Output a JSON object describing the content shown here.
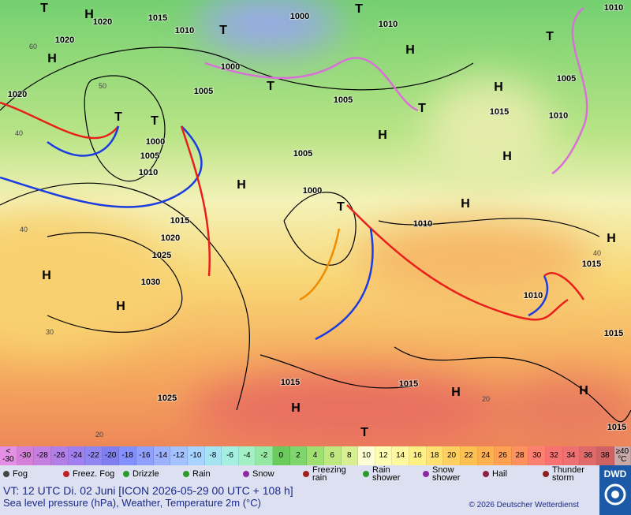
{
  "map": {
    "isobar_labels": [
      "1015",
      "1020",
      "1020",
      "1010",
      "1000",
      "1010",
      "1010",
      "1000",
      "1005",
      "1005",
      "1005",
      "1015",
      "1010",
      "1000",
      "1005",
      "1010",
      "1005",
      "1000",
      "1015",
      "1020",
      "1025",
      "1030",
      "1010",
      "1015",
      "1010",
      "1015",
      "1015",
      "1015",
      "1025",
      "1015",
      "1020"
    ],
    "pressure_centers": [
      "H",
      "H",
      "H",
      "H",
      "H",
      "H",
      "H",
      "H",
      "H",
      "H",
      "H",
      "H",
      "H",
      "H",
      "T",
      "T",
      "T",
      "T",
      "T",
      "T",
      "T",
      "T",
      "T",
      "T"
    ],
    "temperature_labels": [
      "60",
      "50",
      "40",
      "40",
      "30",
      "20",
      "40",
      "20"
    ]
  },
  "color_scale": [
    {
      "label": "< -30",
      "color": "#e38fe3"
    },
    {
      "label": "-30",
      "color": "#d47fd8"
    },
    {
      "label": "-28",
      "color": "#c47fe0"
    },
    {
      "label": "-26",
      "color": "#b27fe8"
    },
    {
      "label": "-24",
      "color": "#a07ff0"
    },
    {
      "label": "-22",
      "color": "#8f86f2"
    },
    {
      "label": "-20",
      "color": "#7f7ff0"
    },
    {
      "label": "-18",
      "color": "#8390ff"
    },
    {
      "label": "-16",
      "color": "#90a0ff"
    },
    {
      "label": "-14",
      "color": "#9db2ff"
    },
    {
      "label": "-12",
      "color": "#a3c2ff"
    },
    {
      "label": "-10",
      "color": "#a6d3ff"
    },
    {
      "label": "-8",
      "color": "#a4e3f2"
    },
    {
      "label": "-6",
      "color": "#a3f0e0"
    },
    {
      "label": "-4",
      "color": "#a3f0c4"
    },
    {
      "label": "-2",
      "color": "#94e8a3"
    },
    {
      "label": "0",
      "color": "#6acb5c"
    },
    {
      "label": "2",
      "color": "#7fd66c"
    },
    {
      "label": "4",
      "color": "#a0e070"
    },
    {
      "label": "6",
      "color": "#bfe880"
    },
    {
      "label": "8",
      "color": "#d8f092"
    },
    {
      "label": "10",
      "color": "#ffffd6"
    },
    {
      "label": "12",
      "color": "#ffffb4"
    },
    {
      "label": "14",
      "color": "#fff8a0"
    },
    {
      "label": "16",
      "color": "#fff084"
    },
    {
      "label": "18",
      "color": "#ffe070"
    },
    {
      "label": "20",
      "color": "#ffd060"
    },
    {
      "label": "22",
      "color": "#ffc052"
    },
    {
      "label": "24",
      "color": "#ffb050"
    },
    {
      "label": "26",
      "color": "#ffa052"
    },
    {
      "label": "28",
      "color": "#ff9060"
    },
    {
      "label": "30",
      "color": "#ff8070"
    },
    {
      "label": "32",
      "color": "#f87272"
    },
    {
      "label": "34",
      "color": "#ef7070"
    },
    {
      "label": "36",
      "color": "#e06a6a"
    },
    {
      "label": "38",
      "color": "#cf6262"
    },
    {
      "label": "≥40 °C",
      "color": "#c8a8a8"
    }
  ],
  "legend": [
    "Fog",
    "Freez. Fog",
    "Drizzle",
    "Rain",
    "Snow",
    "Freezing rain",
    "Rain shower",
    "Snow shower",
    "Hail",
    "Thunder storm"
  ],
  "footer": {
    "valid_time": "VT: 12 UTC Di.  02 Juni [ICON 2026-05-29  00 UTC + 108 h]",
    "description": "Sea level pressure (hPa), Weather, Temperature 2m (°C)",
    "copyright": "© 2026 Deutscher Wetterdienst",
    "logo": "DWD"
  }
}
